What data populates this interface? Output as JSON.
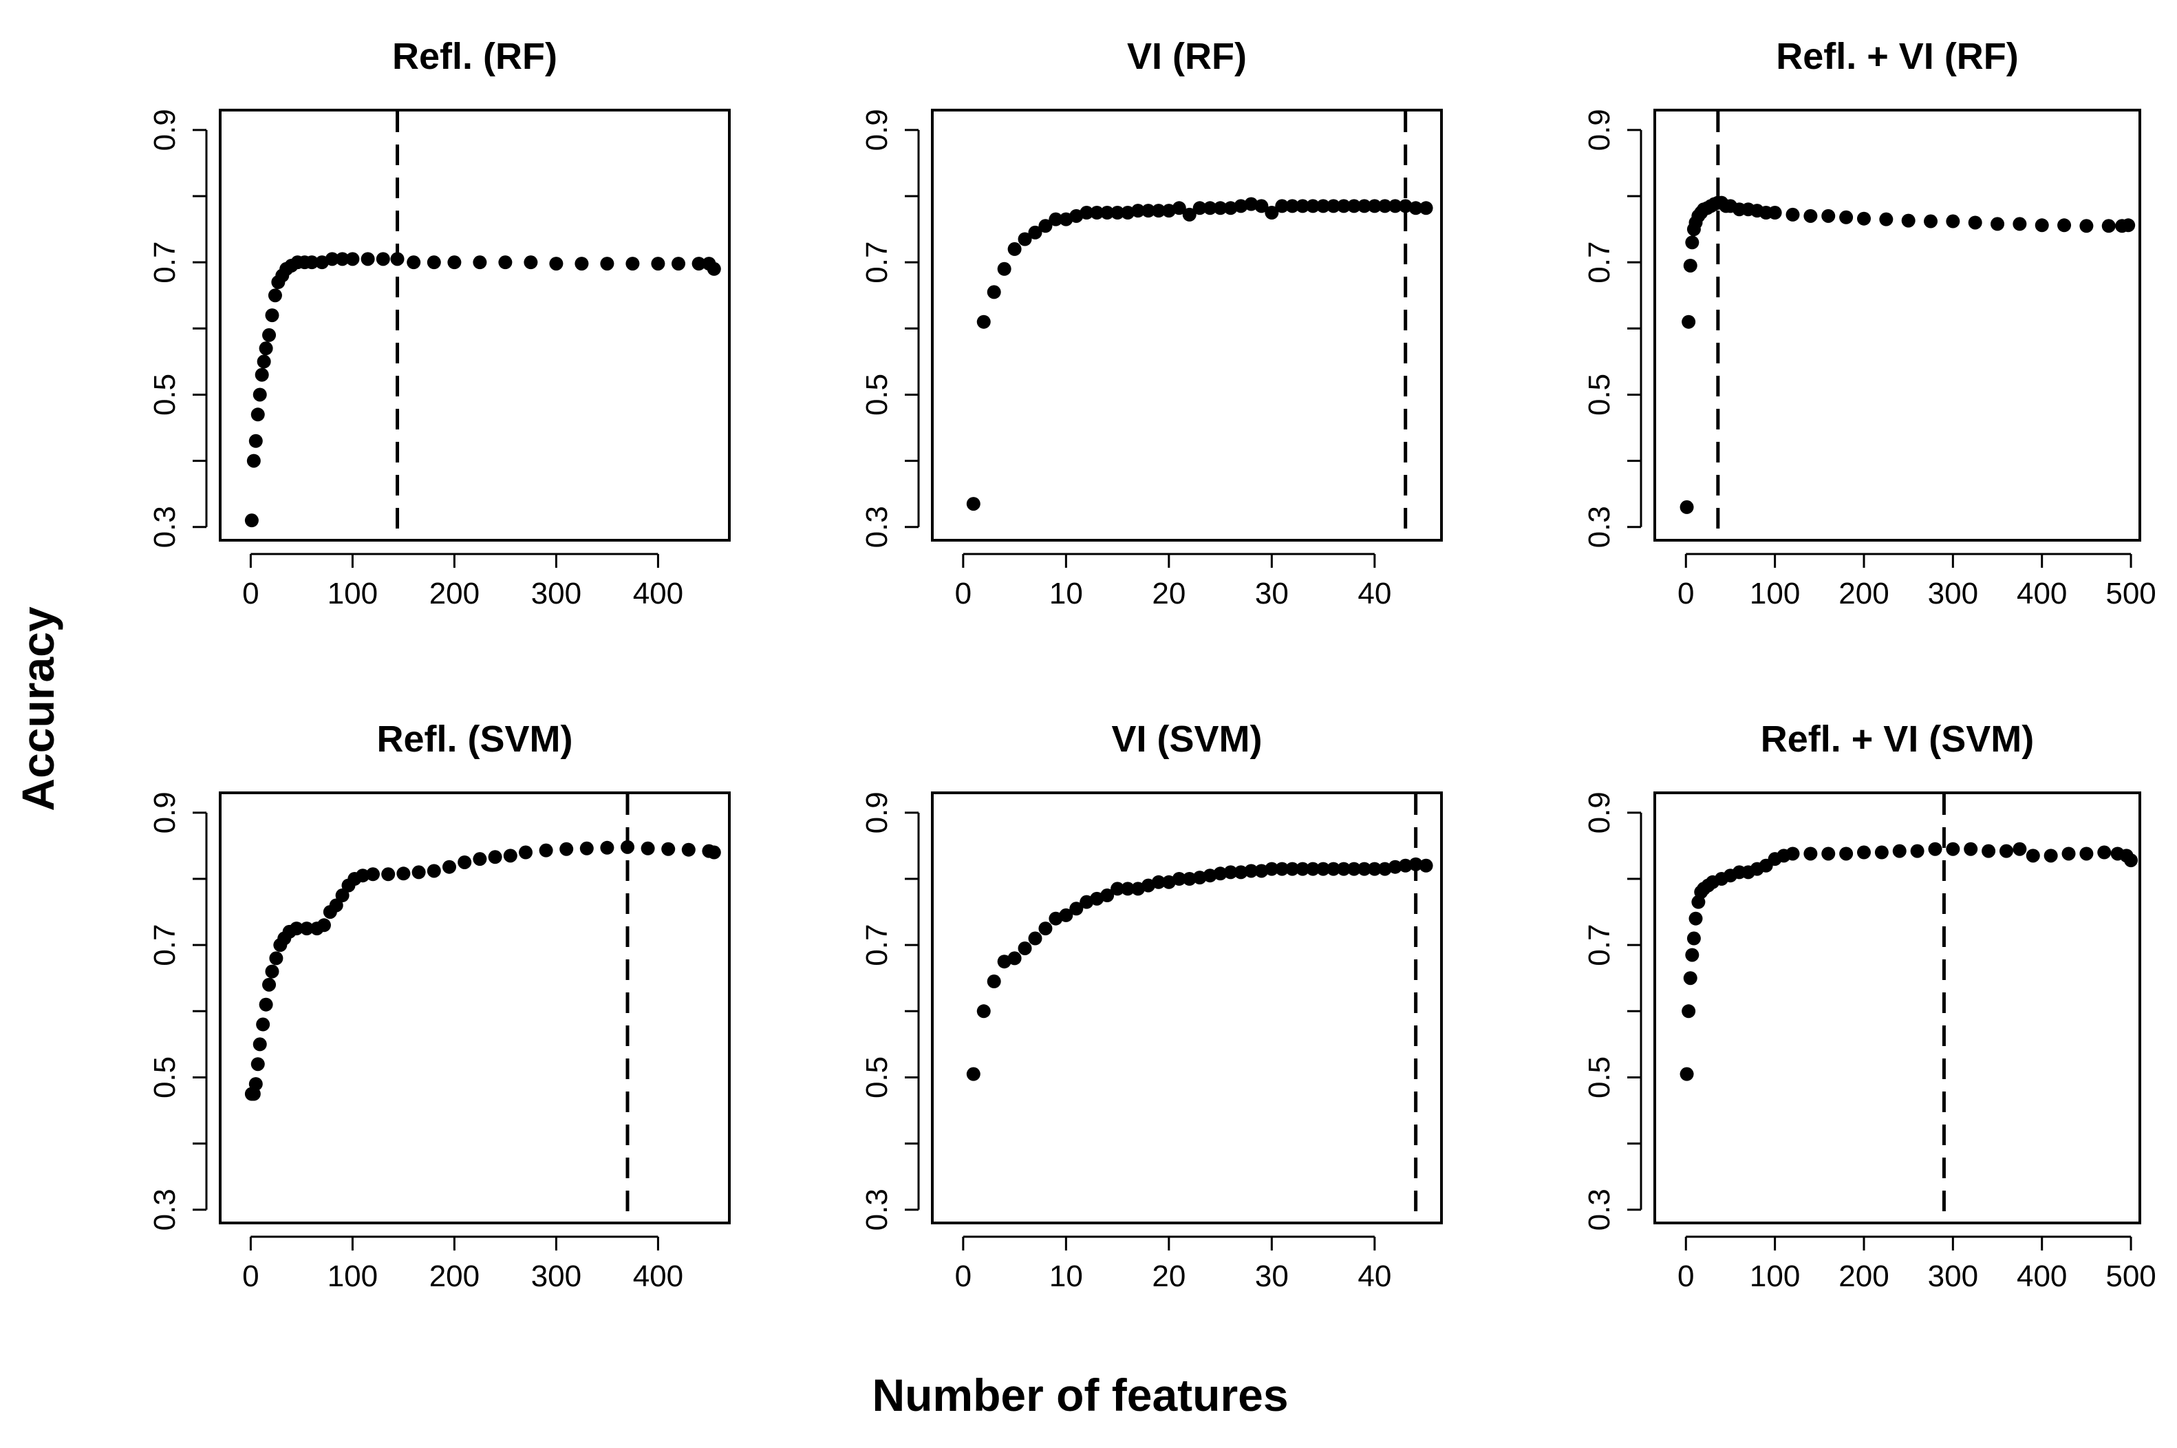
{
  "figure": {
    "xlabel": "Number of features",
    "ylabel": "Accuracy"
  },
  "chart_data": [
    {
      "type": "scatter",
      "title": "Refl. (RF)",
      "xticks": [
        0,
        100,
        200,
        300,
        400
      ],
      "yticks": [
        0.3,
        0.5,
        0.7,
        0.9
      ],
      "xlim": [
        -30,
        470
      ],
      "ylim": [
        0.28,
        0.93
      ],
      "vline_x": 144,
      "points_x": [
        1,
        3,
        5,
        7,
        9,
        11,
        13,
        15,
        18,
        21,
        24,
        27,
        31,
        35,
        40,
        46,
        53,
        60,
        70,
        80,
        90,
        100,
        115,
        130,
        144,
        160,
        180,
        200,
        225,
        250,
        275,
        300,
        325,
        350,
        375,
        400,
        420,
        440,
        450,
        455
      ],
      "points_y": [
        0.31,
        0.4,
        0.43,
        0.47,
        0.5,
        0.53,
        0.55,
        0.57,
        0.59,
        0.62,
        0.65,
        0.67,
        0.68,
        0.69,
        0.695,
        0.7,
        0.7,
        0.7,
        0.7,
        0.705,
        0.705,
        0.705,
        0.705,
        0.705,
        0.705,
        0.7,
        0.7,
        0.7,
        0.7,
        0.7,
        0.7,
        0.698,
        0.698,
        0.698,
        0.698,
        0.698,
        0.698,
        0.698,
        0.698,
        0.69
      ]
    },
    {
      "type": "scatter",
      "title": "VI (RF)",
      "xticks": [
        0,
        10,
        20,
        30,
        40
      ],
      "yticks": [
        0.3,
        0.5,
        0.7,
        0.9
      ],
      "xlim": [
        -3,
        46.5
      ],
      "ylim": [
        0.28,
        0.93
      ],
      "vline_x": 43,
      "points_x": [
        1,
        2,
        3,
        4,
        5,
        6,
        7,
        8,
        9,
        10,
        11,
        12,
        13,
        14,
        15,
        16,
        17,
        18,
        19,
        20,
        21,
        22,
        23,
        24,
        25,
        26,
        27,
        28,
        29,
        30,
        31,
        32,
        33,
        34,
        35,
        36,
        37,
        38,
        39,
        40,
        41,
        42,
        43,
        44,
        45
      ],
      "points_y": [
        0.335,
        0.61,
        0.655,
        0.69,
        0.72,
        0.735,
        0.745,
        0.755,
        0.765,
        0.765,
        0.77,
        0.775,
        0.775,
        0.775,
        0.775,
        0.775,
        0.778,
        0.778,
        0.778,
        0.778,
        0.782,
        0.772,
        0.782,
        0.782,
        0.782,
        0.782,
        0.785,
        0.788,
        0.785,
        0.775,
        0.785,
        0.785,
        0.785,
        0.785,
        0.785,
        0.785,
        0.785,
        0.785,
        0.785,
        0.785,
        0.785,
        0.785,
        0.785,
        0.782,
        0.782
      ]
    },
    {
      "type": "scatter",
      "title": "Refl. + VI (RF)",
      "xticks": [
        0,
        100,
        200,
        300,
        400,
        500
      ],
      "yticks": [
        0.3,
        0.5,
        0.7,
        0.9
      ],
      "xlim": [
        -35,
        510
      ],
      "ylim": [
        0.28,
        0.93
      ],
      "vline_x": 36,
      "points_x": [
        1,
        3,
        5,
        7,
        9,
        11,
        14,
        17,
        20,
        24,
        28,
        32,
        36,
        40,
        45,
        50,
        60,
        70,
        80,
        90,
        100,
        120,
        140,
        160,
        180,
        200,
        225,
        250,
        275,
        300,
        325,
        350,
        375,
        400,
        425,
        450,
        475,
        490,
        497
      ],
      "points_y": [
        0.33,
        0.61,
        0.695,
        0.73,
        0.75,
        0.76,
        0.77,
        0.775,
        0.78,
        0.782,
        0.785,
        0.788,
        0.79,
        0.79,
        0.785,
        0.785,
        0.78,
        0.78,
        0.778,
        0.775,
        0.775,
        0.772,
        0.77,
        0.77,
        0.768,
        0.766,
        0.765,
        0.763,
        0.762,
        0.762,
        0.76,
        0.758,
        0.758,
        0.756,
        0.756,
        0.755,
        0.755,
        0.755,
        0.756
      ]
    },
    {
      "type": "scatter",
      "title": "Refl. (SVM)",
      "xticks": [
        0,
        100,
        200,
        300,
        400
      ],
      "yticks": [
        0.3,
        0.5,
        0.7,
        0.9
      ],
      "xlim": [
        -30,
        470
      ],
      "ylim": [
        0.28,
        0.93
      ],
      "vline_x": 370,
      "points_x": [
        1,
        3,
        5,
        7,
        9,
        12,
        15,
        18,
        21,
        25,
        29,
        33,
        38,
        45,
        55,
        65,
        72,
        78,
        84,
        90,
        96,
        102,
        110,
        120,
        135,
        150,
        165,
        180,
        195,
        210,
        225,
        240,
        255,
        270,
        290,
        310,
        330,
        350,
        370,
        390,
        410,
        430,
        450,
        455
      ],
      "points_y": [
        0.475,
        0.475,
        0.49,
        0.52,
        0.55,
        0.58,
        0.61,
        0.64,
        0.66,
        0.68,
        0.7,
        0.71,
        0.72,
        0.725,
        0.725,
        0.725,
        0.73,
        0.75,
        0.76,
        0.775,
        0.79,
        0.8,
        0.805,
        0.807,
        0.807,
        0.808,
        0.81,
        0.812,
        0.818,
        0.825,
        0.83,
        0.833,
        0.835,
        0.84,
        0.843,
        0.845,
        0.846,
        0.847,
        0.848,
        0.846,
        0.845,
        0.844,
        0.842,
        0.84
      ]
    },
    {
      "type": "scatter",
      "title": "VI (SVM)",
      "xticks": [
        0,
        10,
        20,
        30,
        40
      ],
      "yticks": [
        0.3,
        0.5,
        0.7,
        0.9
      ],
      "xlim": [
        -3,
        46.5
      ],
      "ylim": [
        0.28,
        0.93
      ],
      "vline_x": 44,
      "points_x": [
        1,
        2,
        3,
        4,
        5,
        6,
        7,
        8,
        9,
        10,
        11,
        12,
        13,
        14,
        15,
        16,
        17,
        18,
        19,
        20,
        21,
        22,
        23,
        24,
        25,
        26,
        27,
        28,
        29,
        30,
        31,
        32,
        33,
        34,
        35,
        36,
        37,
        38,
        39,
        40,
        41,
        42,
        43,
        44,
        45
      ],
      "points_y": [
        0.505,
        0.6,
        0.645,
        0.675,
        0.68,
        0.695,
        0.71,
        0.725,
        0.74,
        0.745,
        0.755,
        0.765,
        0.77,
        0.775,
        0.785,
        0.785,
        0.785,
        0.79,
        0.795,
        0.795,
        0.8,
        0.8,
        0.802,
        0.805,
        0.808,
        0.81,
        0.81,
        0.812,
        0.812,
        0.815,
        0.815,
        0.815,
        0.815,
        0.815,
        0.815,
        0.815,
        0.815,
        0.815,
        0.815,
        0.815,
        0.815,
        0.818,
        0.82,
        0.822,
        0.82
      ]
    },
    {
      "type": "scatter",
      "title": "Refl. + VI (SVM)",
      "xticks": [
        0,
        100,
        200,
        300,
        400,
        500
      ],
      "yticks": [
        0.3,
        0.5,
        0.7,
        0.9
      ],
      "xlim": [
        -35,
        510
      ],
      "ylim": [
        0.28,
        0.93
      ],
      "vline_x": 290,
      "points_x": [
        1,
        3,
        5,
        7,
        9,
        11,
        14,
        17,
        20,
        25,
        30,
        40,
        50,
        60,
        70,
        80,
        90,
        100,
        110,
        120,
        140,
        160,
        180,
        200,
        220,
        240,
        260,
        280,
        300,
        320,
        340,
        360,
        375,
        390,
        410,
        430,
        450,
        470,
        485,
        495,
        500
      ],
      "points_y": [
        0.505,
        0.6,
        0.65,
        0.685,
        0.71,
        0.74,
        0.765,
        0.78,
        0.785,
        0.79,
        0.795,
        0.8,
        0.805,
        0.81,
        0.81,
        0.815,
        0.82,
        0.83,
        0.835,
        0.838,
        0.838,
        0.838,
        0.838,
        0.84,
        0.84,
        0.842,
        0.842,
        0.845,
        0.845,
        0.845,
        0.842,
        0.842,
        0.845,
        0.835,
        0.835,
        0.838,
        0.838,
        0.84,
        0.838,
        0.835,
        0.828
      ]
    }
  ]
}
